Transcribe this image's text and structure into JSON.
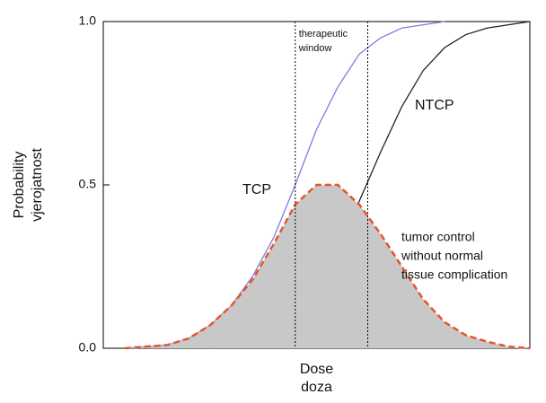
{
  "chart_data": {
    "type": "line",
    "ylabel": [
      "Probability",
      "vjerojatnost"
    ],
    "xlabel": [
      "Dose",
      "doza"
    ],
    "xlim": [
      0,
      100
    ],
    "ylim": [
      0,
      1
    ],
    "yticks": [
      {
        "value": 0,
        "label": "0.0"
      },
      {
        "value": 0.5,
        "label": "0.5"
      },
      {
        "value": 1,
        "label": "1.0"
      }
    ],
    "x": [
      5,
      10,
      15,
      20,
      25,
      30,
      35,
      40,
      45,
      50,
      55,
      60,
      65,
      70,
      75,
      80,
      85,
      90,
      95,
      100
    ],
    "series": [
      {
        "name": "TCP",
        "color": "#7b7fe0",
        "dash": false,
        "fill": false,
        "values": [
          0,
          0.005,
          0.01,
          0.03,
          0.07,
          0.13,
          0.22,
          0.34,
          0.5,
          0.67,
          0.8,
          0.9,
          0.95,
          0.98,
          0.99,
          1,
          null,
          null,
          null,
          null
        ]
      },
      {
        "name": "NTCP",
        "color": "#222222",
        "dash": false,
        "fill": false,
        "values": [
          null,
          null,
          null,
          null,
          0,
          0.01,
          0.02,
          0.05,
          0.1,
          0.18,
          0.3,
          0.45,
          0.6,
          0.74,
          0.85,
          0.92,
          0.96,
          0.98,
          0.99,
          1
        ]
      },
      {
        "name": [
          "tumor control",
          "without normal",
          "tissue complication"
        ],
        "color": "#e8542a",
        "dash": true,
        "fill": true,
        "values": [
          0,
          0.005,
          0.01,
          0.03,
          0.07,
          0.13,
          0.21,
          0.32,
          0.44,
          0.5,
          0.5,
          0.44,
          0.35,
          0.25,
          0.15,
          0.08,
          0.04,
          0.02,
          0.005,
          0
        ]
      }
    ],
    "therapeutic_window": {
      "label": [
        "therapeutic",
        "window"
      ],
      "x": [
        45,
        62
      ]
    }
  }
}
